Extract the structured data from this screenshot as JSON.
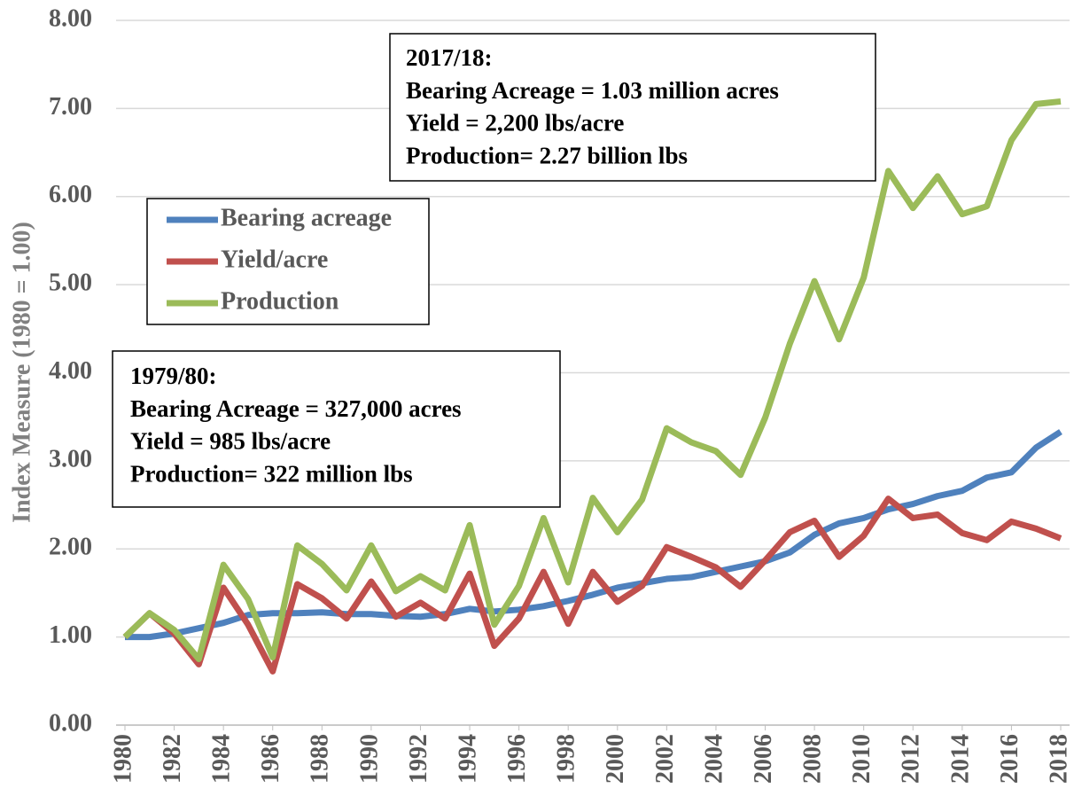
{
  "chart_data": {
    "type": "line",
    "ylabel": "Index Measure (1980 = 1.00)",
    "x": [
      1980,
      1981,
      1982,
      1983,
      1984,
      1985,
      1986,
      1987,
      1988,
      1989,
      1990,
      1991,
      1992,
      1993,
      1994,
      1995,
      1996,
      1997,
      1998,
      1999,
      2000,
      2001,
      2002,
      2003,
      2004,
      2005,
      2006,
      2007,
      2008,
      2009,
      2010,
      2011,
      2012,
      2013,
      2014,
      2015,
      2016,
      2017,
      2018
    ],
    "series": [
      {
        "name": "Bearing acreage",
        "color": "#4f81bd",
        "values": [
          1.0,
          1.0,
          1.04,
          1.1,
          1.16,
          1.25,
          1.27,
          1.27,
          1.28,
          1.26,
          1.26,
          1.24,
          1.23,
          1.26,
          1.32,
          1.29,
          1.31,
          1.35,
          1.41,
          1.48,
          1.56,
          1.61,
          1.66,
          1.68,
          1.74,
          1.8,
          1.86,
          1.96,
          2.16,
          2.29,
          2.35,
          2.45,
          2.51,
          2.6,
          2.66,
          2.81,
          2.87,
          3.15,
          3.33
        ]
      },
      {
        "name": "Yield/acre",
        "color": "#c0504d",
        "values": [
          1.0,
          1.27,
          1.04,
          0.69,
          1.56,
          1.14,
          0.61,
          1.6,
          1.44,
          1.21,
          1.63,
          1.23,
          1.39,
          1.21,
          1.72,
          0.9,
          1.21,
          1.74,
          1.15,
          1.74,
          1.4,
          1.58,
          2.02,
          1.91,
          1.79,
          1.57,
          1.87,
          2.19,
          2.32,
          1.91,
          2.15,
          2.57,
          2.35,
          2.39,
          2.18,
          2.1,
          2.31,
          2.23,
          2.12
        ]
      },
      {
        "name": "Production",
        "color": "#9bbb59",
        "values": [
          1.0,
          1.27,
          1.08,
          0.75,
          1.82,
          1.43,
          0.77,
          2.04,
          1.83,
          1.53,
          2.04,
          1.52,
          1.69,
          1.53,
          2.27,
          1.14,
          1.58,
          2.35,
          1.62,
          2.58,
          2.19,
          2.56,
          3.37,
          3.21,
          3.11,
          2.84,
          3.49,
          4.33,
          5.04,
          4.38,
          5.08,
          6.29,
          5.87,
          6.23,
          5.8,
          5.89,
          6.64,
          7.05,
          7.08
        ]
      }
    ],
    "xlim": [
      1980,
      2018
    ],
    "xticks": [
      1980,
      1982,
      1984,
      1986,
      1988,
      1990,
      1992,
      1994,
      1996,
      1998,
      2000,
      2002,
      2004,
      2006,
      2008,
      2010,
      2012,
      2014,
      2016,
      2018
    ],
    "ylim": [
      0,
      8
    ],
    "yticks": [
      {
        "value": 0,
        "label": "0.00"
      },
      {
        "value": 1,
        "label": "1.00"
      },
      {
        "value": 2,
        "label": "2.00"
      },
      {
        "value": 3,
        "label": "3.00"
      },
      {
        "value": 4,
        "label": "4.00"
      },
      {
        "value": 5,
        "label": "5.00"
      },
      {
        "value": 6,
        "label": "6.00"
      },
      {
        "value": 7,
        "label": "7.00"
      },
      {
        "value": 8,
        "label": "8.00"
      }
    ],
    "grid": true,
    "annotations": [
      [
        "2017/18:",
        "Bearing Acreage = 1.03 million acres",
        "Yield = 2,200 lbs/acre",
        "Production= 2.27 billion lbs"
      ],
      [
        "1979/80:",
        "Bearing Acreage = 327,000 acres",
        "Yield = 985 lbs/acre",
        "Production= 322 million lbs"
      ]
    ]
  }
}
